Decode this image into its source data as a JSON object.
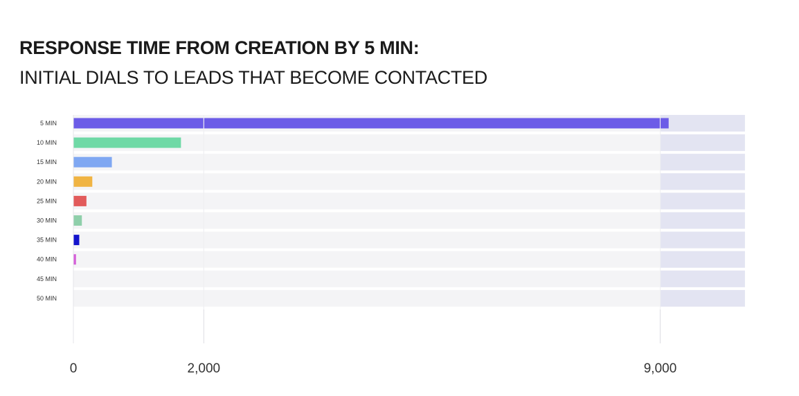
{
  "chart_data": {
    "type": "bar",
    "orientation": "horizontal",
    "title": "RESPONSE TIME FROM CREATION BY 5 MIN:",
    "subtitle": "INITIAL DIALS TO LEADS THAT BECOME CONTACTED",
    "categories": [
      "5 MIN",
      "10 MIN",
      "15 MIN",
      "20 MIN",
      "25 MIN",
      "30 MIN",
      "35 MIN",
      "40 MIN",
      "45 MIN",
      "50 MIN"
    ],
    "values": [
      9130,
      1650,
      590,
      290,
      200,
      130,
      90,
      40,
      0,
      0
    ],
    "colors": [
      "#6c5ce7",
      "#6fd9a6",
      "#7fa7f2",
      "#f0b443",
      "#e25b5b",
      "#8fcfaa",
      "#1414cc",
      "#d45ed8",
      "#d45ed8",
      "#d45ed8"
    ],
    "x_ticks": [
      0,
      2000,
      9000
    ],
    "x_tick_labels": [
      "0",
      "2,000",
      "9,000"
    ],
    "xlim": [
      0,
      10300
    ],
    "highlight_range": [
      9000,
      10300
    ],
    "grid": true
  }
}
